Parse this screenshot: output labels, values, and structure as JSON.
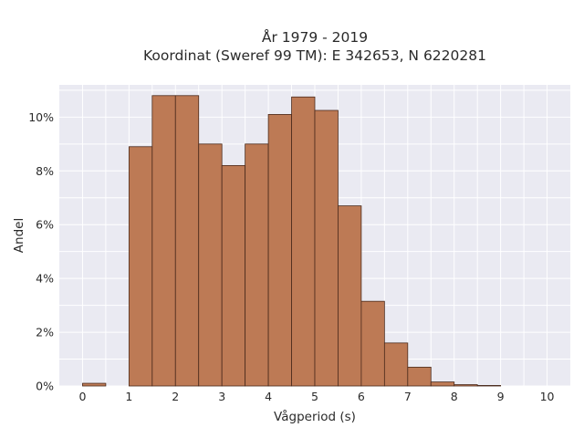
{
  "chart_data": {
    "type": "bar",
    "title": "År 1979 - 2019",
    "subtitle": "Koordinat (Sweref 99 TM): E 342653, N 6220281",
    "xlabel": "Vågperiod (s)",
    "ylabel": "Andel",
    "xlim": [
      -0.5,
      10.5
    ],
    "ylim": [
      0,
      11.2
    ],
    "x_ticks": [
      0,
      1,
      2,
      3,
      4,
      5,
      6,
      7,
      8,
      9,
      10
    ],
    "y_ticks": [
      0,
      2,
      4,
      6,
      8,
      10
    ],
    "y_tick_labels": [
      "0%",
      "2%",
      "4%",
      "6%",
      "8%",
      "10%"
    ],
    "bin_width": 0.5,
    "bins": [
      {
        "x0": 0.0,
        "x1": 0.5,
        "value": 0.1
      },
      {
        "x0": 1.0,
        "x1": 1.5,
        "value": 8.9
      },
      {
        "x0": 1.5,
        "x1": 2.0,
        "value": 10.8
      },
      {
        "x0": 2.0,
        "x1": 2.5,
        "value": 10.8
      },
      {
        "x0": 2.5,
        "x1": 3.0,
        "value": 9.0
      },
      {
        "x0": 3.0,
        "x1": 3.5,
        "value": 8.2
      },
      {
        "x0": 3.5,
        "x1": 4.0,
        "value": 9.0
      },
      {
        "x0": 4.0,
        "x1": 4.5,
        "value": 10.1
      },
      {
        "x0": 4.5,
        "x1": 5.0,
        "value": 10.75
      },
      {
        "x0": 5.0,
        "x1": 5.5,
        "value": 10.25
      },
      {
        "x0": 5.5,
        "x1": 6.0,
        "value": 6.7
      },
      {
        "x0": 6.0,
        "x1": 6.5,
        "value": 3.15
      },
      {
        "x0": 6.5,
        "x1": 7.0,
        "value": 1.6
      },
      {
        "x0": 7.0,
        "x1": 7.5,
        "value": 0.7
      },
      {
        "x0": 7.5,
        "x1": 8.0,
        "value": 0.15
      },
      {
        "x0": 8.0,
        "x1": 8.5,
        "value": 0.05
      },
      {
        "x0": 8.5,
        "x1": 9.0,
        "value": 0.02
      }
    ],
    "grid": true,
    "colors": {
      "bar": "#bd7a55",
      "bar_edge": "#4a2a1c",
      "plot_bg": "#eaeaf2",
      "grid": "#ffffff"
    }
  }
}
